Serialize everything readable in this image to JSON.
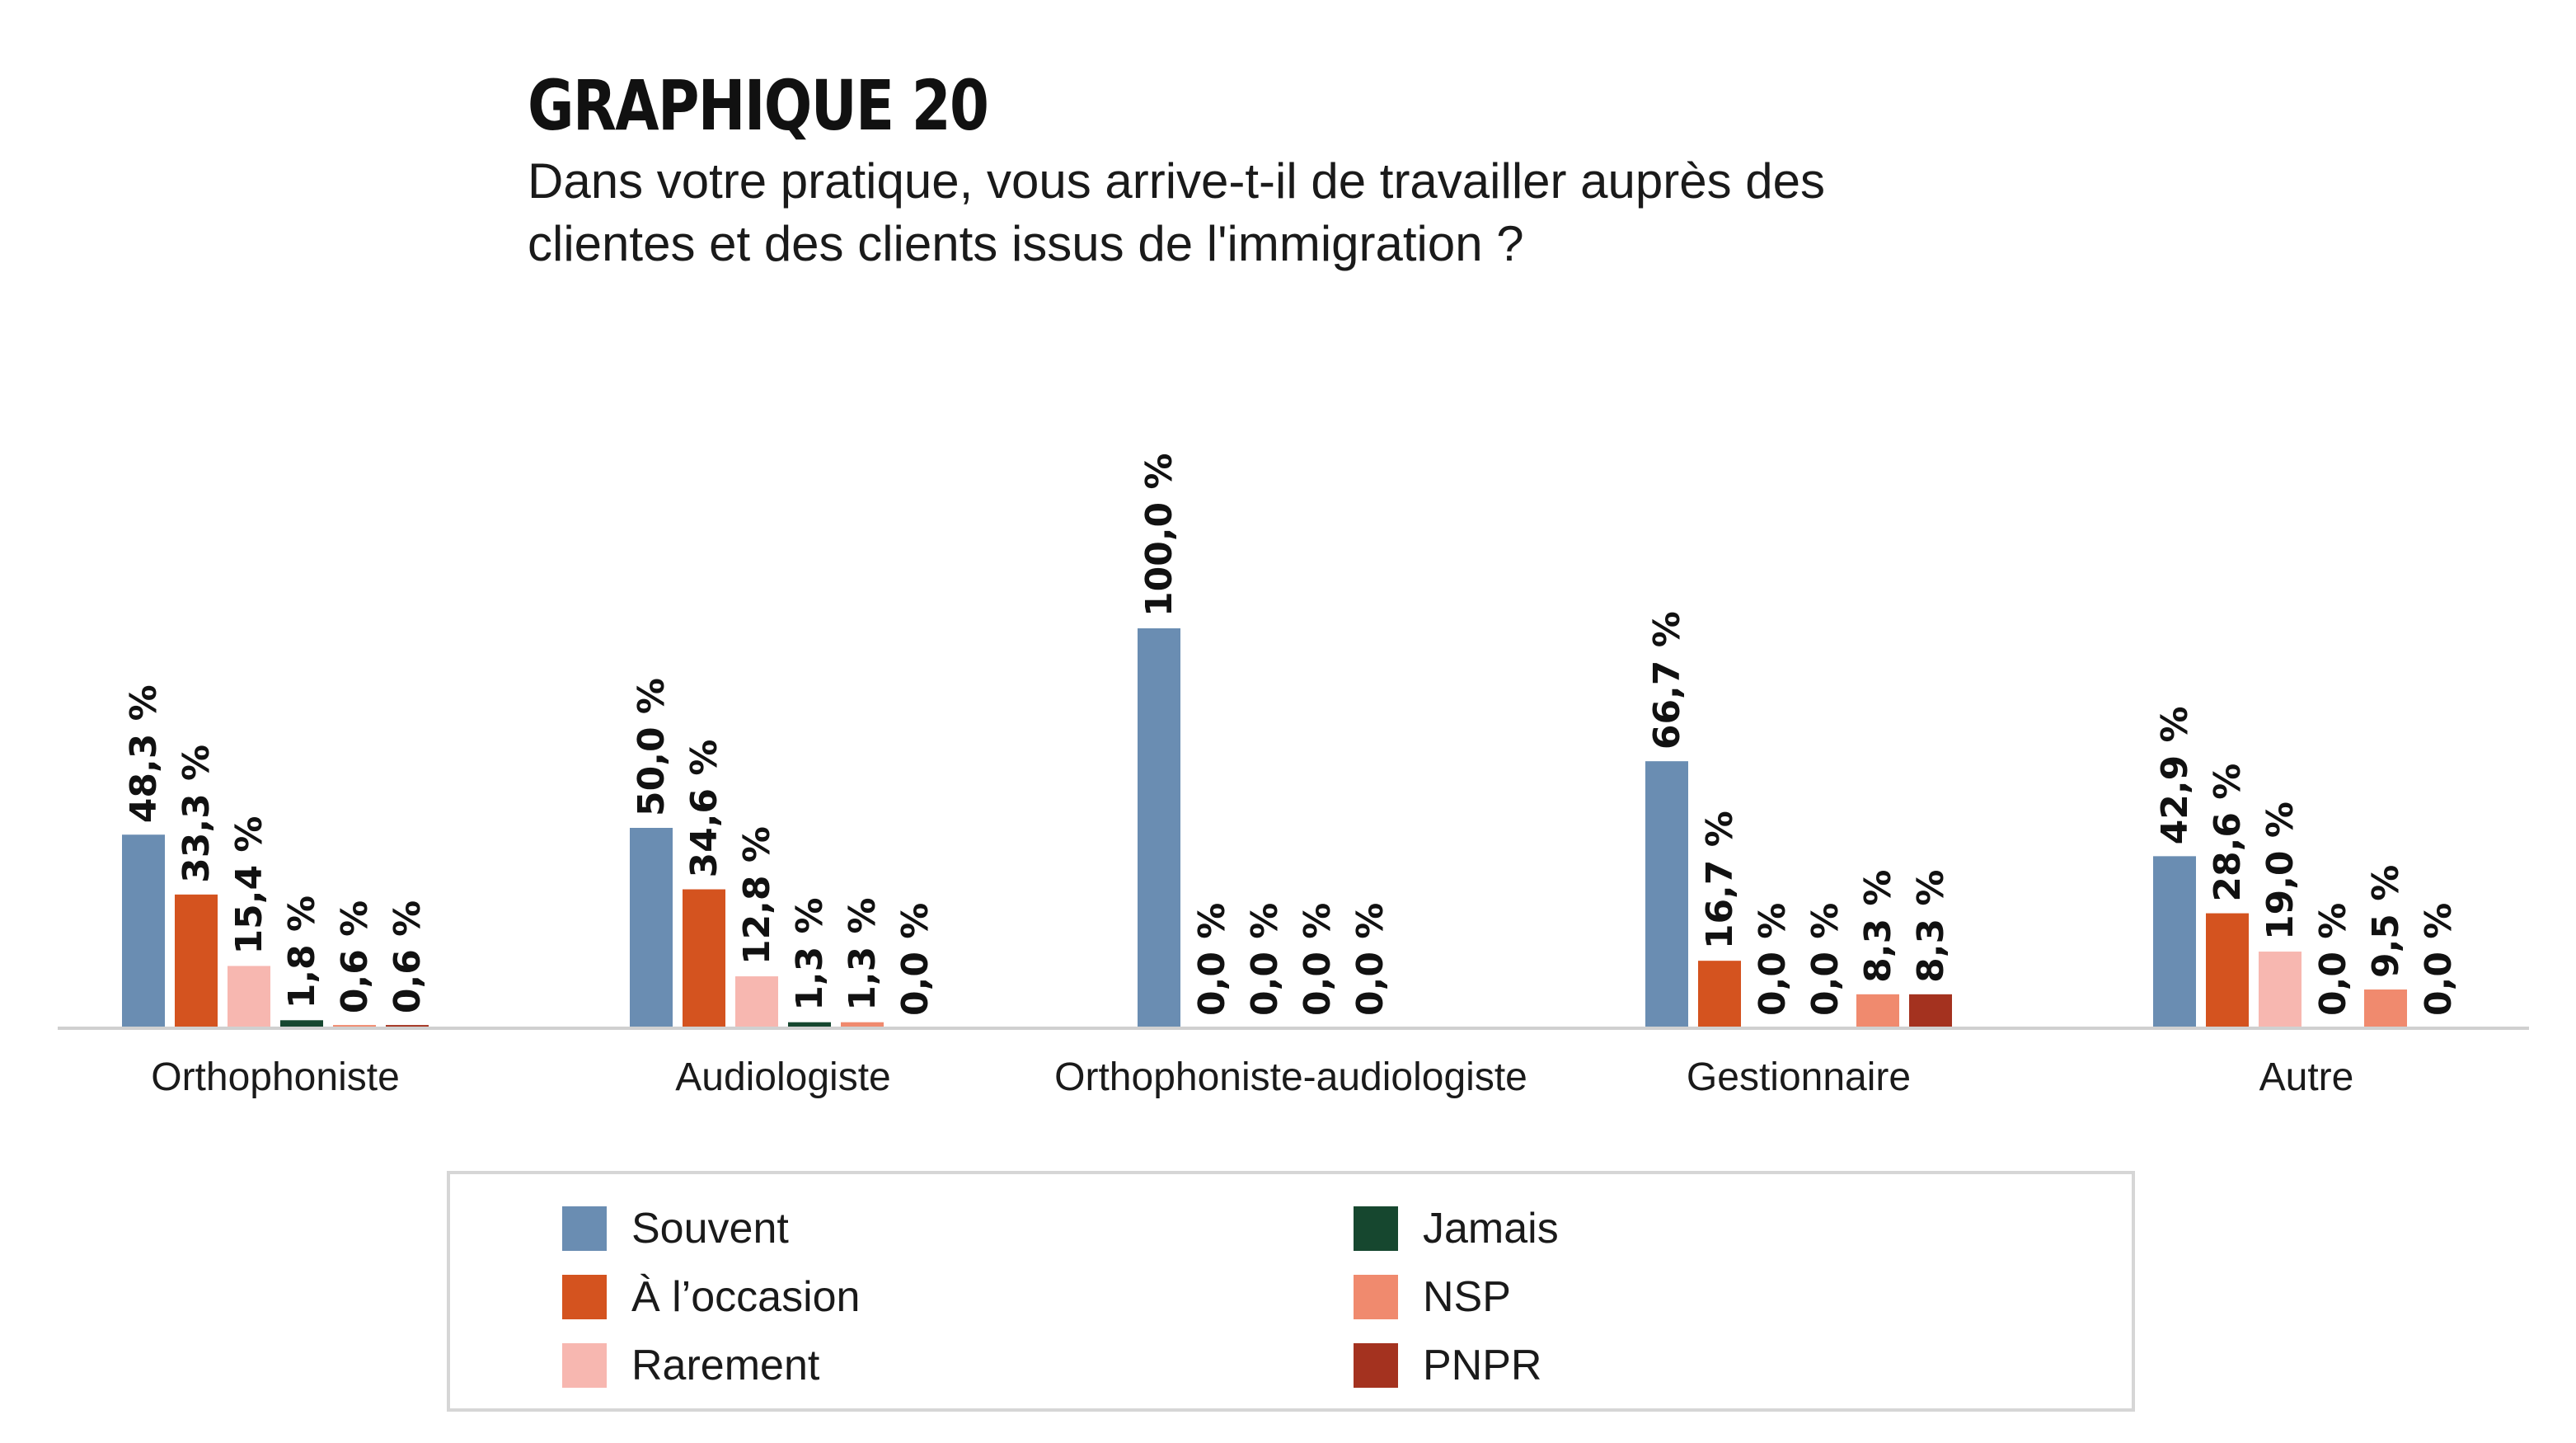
{
  "header": {
    "title": "GRAPHIQUE 20",
    "subtitle": "Dans votre pratique, vous arrive-t-il de travailler auprès des clientes et des clients issus de l'immigration ?"
  },
  "chart_data": {
    "type": "bar",
    "title": "GRAPHIQUE 20",
    "subtitle": "Dans votre pratique, vous arrive-t-il de travailler auprès des clientes et des clients issus de l'immigration ?",
    "xlabel": "",
    "ylabel": "",
    "ylim": [
      0,
      100
    ],
    "grid": false,
    "legend_position": "bottom",
    "categories": [
      "Orthophoniste",
      "Audiologiste",
      "Orthophoniste-audiologiste",
      "Gestionnaire",
      "Autre"
    ],
    "series": [
      {
        "name": "Souvent",
        "color": "#6a8db2",
        "values": [
          48.3,
          50.0,
          100.0,
          66.7,
          42.9
        ],
        "labels": [
          "48,3 %",
          "50,0 %",
          "100,0 %",
          "66,7 %",
          "42,9 %"
        ]
      },
      {
        "name": "À l’occasion",
        "color": "#d4531f",
        "values": [
          33.3,
          34.6,
          0.0,
          16.7,
          28.6
        ],
        "labels": [
          "33,3 %",
          "34,6 %",
          "0,0 %",
          "16,7 %",
          "28,6 %"
        ]
      },
      {
        "name": "Rarement",
        "color": "#f7b7b0",
        "values": [
          15.4,
          12.8,
          0.0,
          0.0,
          19.0
        ],
        "labels": [
          "15,4 %",
          "12,8 %",
          "0,0 %",
          "0,0 %",
          "19,0 %"
        ]
      },
      {
        "name": "Jamais",
        "color": "#16472f",
        "values": [
          1.8,
          1.3,
          0.0,
          0.0,
          0.0
        ],
        "labels": [
          "1,8 %",
          "1,3 %",
          "0,0 %",
          "0,0 %",
          "0,0 %"
        ]
      },
      {
        "name": "NSP",
        "color": "#f08a6e",
        "values": [
          0.6,
          1.3,
          0.0,
          8.3,
          9.5
        ],
        "labels": [
          "0,6 %",
          "1,3 %",
          "0,0 %",
          "8,3 %",
          "9,5 %"
        ]
      },
      {
        "name": "PNPR",
        "color": "#a4321f",
        "values": [
          0.6,
          0.0,
          null,
          8.3,
          0.0
        ],
        "labels": [
          "0,6 %",
          "0,0 %",
          null,
          "8,3 %",
          "0,0 %"
        ]
      }
    ]
  }
}
